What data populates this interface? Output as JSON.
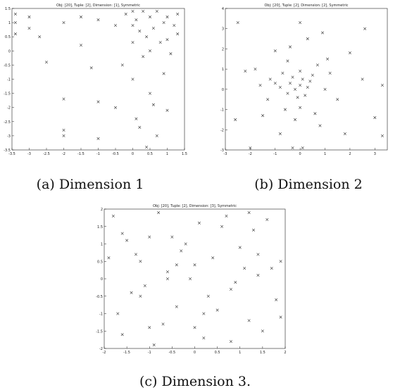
{
  "chart_data": [
    {
      "type": "scatter",
      "title": "Obj: [20], Tuple: [2], Dimension: [1], Symmetric",
      "caption": "(a) Dimension 1",
      "color": "#333333",
      "xlim": [
        -3.5,
        1.5
      ],
      "xticks": [
        -3.5,
        -3,
        -2.5,
        -2,
        -1.5,
        -1,
        -0.5,
        0,
        0.5,
        1,
        1.5
      ],
      "ylim": [
        -3.5,
        1.5
      ],
      "yticks": [
        -3.5,
        -3,
        -2.5,
        -2,
        -1.5,
        -1,
        -0.5,
        0,
        0.5,
        1,
        1.5
      ],
      "x": [
        -3.4,
        -3.4,
        -3.4,
        -3.0,
        -3.0,
        -2.7,
        -2.5,
        -2.0,
        -2.0,
        -2.0,
        -1.5,
        -1.5,
        -1.2,
        -1.0,
        -1.0,
        -0.5,
        -0.5,
        -0.2,
        0,
        0,
        0,
        0.1,
        0.2,
        0.3,
        0.3,
        0.4,
        0.5,
        0.5,
        0.6,
        0.7,
        0.8,
        0.9,
        1.0,
        1.0,
        1.1,
        1.2,
        1.3,
        0,
        0.5,
        1.0,
        0.2,
        0.7,
        -1.0,
        -2.0,
        0.4,
        0.9,
        1.3,
        0.1,
        0.6,
        -0.3
      ],
      "values": [
        1.3,
        1.0,
        0.6,
        1.2,
        0.8,
        0.5,
        -0.4,
        1.0,
        -1.7,
        -2.8,
        1.2,
        0.2,
        -0.6,
        1.1,
        -1.8,
        0.9,
        -2.0,
        1.3,
        1.4,
        0.9,
        0.3,
        1.1,
        0.7,
        1.4,
        -0.2,
        0.5,
        1.2,
        0.0,
        0.8,
        1.4,
        0.3,
        1.0,
        1.2,
        0.4,
        -0.1,
        0.9,
        1.3,
        -1.0,
        -1.5,
        -2.1,
        -2.7,
        -3.0,
        -3.1,
        -3.0,
        -3.4,
        -0.8,
        0.6,
        -2.4,
        -1.9,
        -0.5
      ]
    },
    {
      "type": "scatter",
      "title": "Obj: [20], Tuple: [2], Dimension: [2], Symmetric",
      "caption": "(b) Dimension 2",
      "color": "#333333",
      "xlim": [
        -3,
        3.5
      ],
      "xticks": [
        -3,
        -2,
        -1,
        0,
        1,
        2,
        3
      ],
      "ylim": [
        -3,
        4
      ],
      "yticks": [
        -3,
        -2,
        -1,
        0,
        1,
        2,
        3,
        4
      ],
      "x": [
        -2.6,
        -2.2,
        -1.8,
        -1.5,
        -1.2,
        -1.0,
        -0.8,
        -0.7,
        -0.5,
        -0.4,
        -0.3,
        -0.2,
        -0.1,
        0,
        0,
        0.1,
        0.2,
        0.3,
        0.4,
        0.5,
        0.7,
        1.0,
        1.2,
        1.5,
        2.0,
        2.5,
        3.0,
        3.3,
        -0.5,
        0,
        0.3,
        -1.3,
        -2.0,
        0.8,
        1.8,
        -0.6,
        -0.2,
        0.1,
        -1.0,
        2.6,
        -0.4,
        0.6,
        1.1,
        -2.5,
        3.3,
        0.0,
        -0.8,
        -1.6,
        0.9,
        -0.3
      ],
      "values": [
        -1.5,
        0.9,
        1.0,
        -1.3,
        0.5,
        0.3,
        0.1,
        0.8,
        -0.2,
        0.3,
        0.6,
        0.0,
        -0.4,
        0.2,
        0.9,
        0.5,
        -0.3,
        0.1,
        0.4,
        0.7,
        1.2,
        0.0,
        0.8,
        -0.5,
        1.8,
        0.5,
        -1.4,
        0.2,
        1.4,
        3.3,
        2.5,
        -0.5,
        -2.9,
        -1.8,
        -2.2,
        -1.0,
        -1.5,
        -2.9,
        1.9,
        3.0,
        2.1,
        -1.2,
        1.5,
        3.3,
        -2.3,
        -0.9,
        -2.2,
        0.2,
        2.8,
        -2.9
      ]
    },
    {
      "type": "scatter",
      "title": "Obj: [20], Tuple: [2], Dimension: [3], Symmetric",
      "caption": "(c) Dimension 3.",
      "color": "#333333",
      "xlim": [
        -2,
        2
      ],
      "xticks": [
        -2,
        -1.5,
        -1,
        -0.5,
        0,
        0.5,
        1,
        1.5,
        2
      ],
      "ylim": [
        -2,
        2
      ],
      "yticks": [
        -2,
        -1.5,
        -1,
        -0.5,
        0,
        0.5,
        1,
        1.5,
        2
      ],
      "x": [
        -1.8,
        -1.6,
        -1.4,
        -1.2,
        -1.0,
        -0.8,
        -0.6,
        -0.4,
        -0.2,
        0,
        0.2,
        0.4,
        0.6,
        0.8,
        1.0,
        1.2,
        1.4,
        1.6,
        1.8,
        1.9,
        -1.7,
        -1.3,
        -0.9,
        -0.5,
        -0.1,
        0.3,
        0.7,
        1.1,
        1.5,
        1.9,
        -1.9,
        -1.5,
        -1.1,
        -0.7,
        -0.3,
        0.1,
        0.5,
        0.9,
        1.3,
        1.7,
        -1.6,
        -1.0,
        -0.4,
        0.2,
        0.8,
        1.4,
        -1.2,
        0.0,
        1.2,
        -0.6
      ],
      "values": [
        1.8,
        1.3,
        -0.4,
        0.5,
        -1.4,
        1.9,
        0.2,
        -0.8,
        1.0,
        0.4,
        -1.7,
        0.6,
        1.5,
        -0.3,
        0.9,
        -1.2,
        0.1,
        1.7,
        -0.6,
        0.5,
        -1.0,
        0.7,
        -1.9,
        1.2,
        0.0,
        -0.5,
        1.8,
        0.3,
        -1.5,
        -1.1,
        0.6,
        1.1,
        -0.2,
        -1.3,
        0.8,
        1.6,
        -0.9,
        -0.1,
        1.4,
        0.3,
        -1.6,
        1.2,
        0.4,
        -1.0,
        -1.8,
        0.7,
        -0.5,
        -1.4,
        1.9,
        0.0
      ]
    }
  ]
}
